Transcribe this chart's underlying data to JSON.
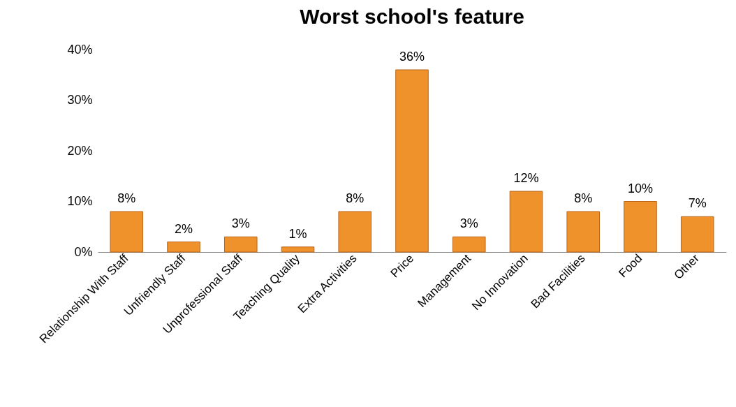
{
  "chart_data": {
    "type": "bar",
    "title": "Worst school's feature",
    "categories": [
      "Relationship With Staff",
      "Unfriendly Staff",
      "Unprofessional Staff",
      "Teaching Quality",
      "Extra Activities",
      "Price",
      "Management",
      "No Innovation",
      "Bad Facilities",
      "Food",
      "Other"
    ],
    "values": [
      8,
      2,
      3,
      1,
      8,
      36,
      3,
      12,
      8,
      10,
      7
    ],
    "value_labels": [
      "8%",
      "2%",
      "3%",
      "1%",
      "8%",
      "36%",
      "3%",
      "12%",
      "8%",
      "10%",
      "7%"
    ],
    "color": "#f0922b",
    "ylim": [
      0,
      40
    ],
    "yticks": [
      {
        "value": 0,
        "label": "0%"
      },
      {
        "value": 10,
        "label": "10%"
      },
      {
        "value": 20,
        "label": "20%"
      },
      {
        "value": 30,
        "label": "30%"
      },
      {
        "value": 40,
        "label": "40%"
      }
    ],
    "grid": false
  }
}
